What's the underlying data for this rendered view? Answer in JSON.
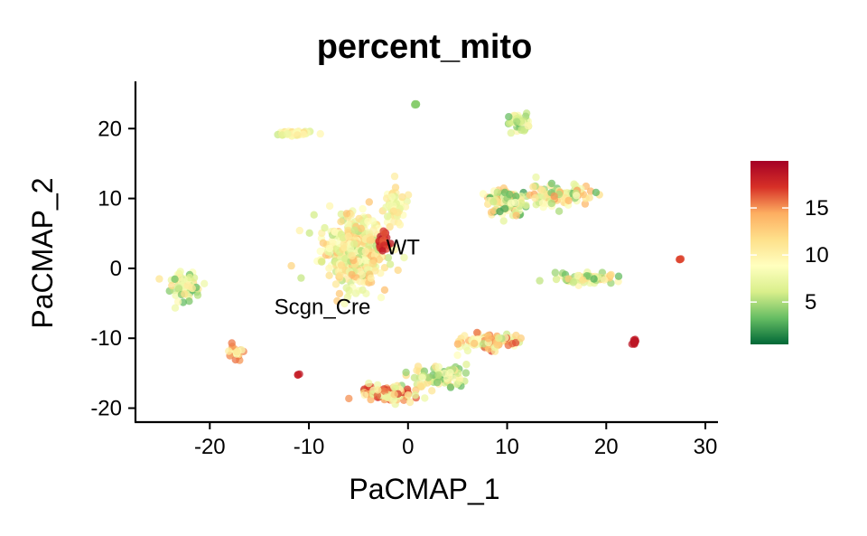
{
  "chart_data": {
    "type": "scatter",
    "title": "percent_mito",
    "xlabel": "PaCMAP_1",
    "ylabel": "PaCMAP_2",
    "xlim": [
      -27.5,
      31
    ],
    "ylim": [
      -22,
      26.5
    ],
    "xticks": [
      -20,
      -10,
      0,
      10,
      20,
      30
    ],
    "yticks": [
      -20,
      -10,
      0,
      10,
      20
    ],
    "grid": false,
    "legend": {
      "position": "right",
      "type": "colorbar",
      "min": 0.5,
      "max": 20,
      "ticks": [
        5,
        10,
        15
      ],
      "colors": [
        "#006837",
        "#66bd63",
        "#d9ef8b",
        "#ffffbf",
        "#fee08b",
        "#fdae61",
        "#d73027",
        "#a50026"
      ]
    },
    "annotations": [
      {
        "text": "WT",
        "x": -2.2,
        "y": 3.0
      },
      {
        "text": "Scgn_Cre",
        "x": -13.5,
        "y": -5.5
      }
    ],
    "clusters": [
      {
        "x": -5.5,
        "y": 2.5,
        "sx": 2.6,
        "sy": 4.2,
        "n": 420,
        "vmin": 5,
        "vmax": 14
      },
      {
        "x": -1.5,
        "y": 9,
        "sx": 1.0,
        "sy": 2.2,
        "n": 60,
        "vmin": 6,
        "vmax": 12
      },
      {
        "x": -11.5,
        "y": 19.3,
        "sx": 1.6,
        "sy": 0.3,
        "n": 50,
        "vmin": 5,
        "vmax": 12
      },
      {
        "x": 0.8,
        "y": 23.5,
        "sx": 0.15,
        "sy": 0.15,
        "n": 6,
        "vmin": 3,
        "vmax": 5
      },
      {
        "x": 11,
        "y": 21.2,
        "sx": 0.9,
        "sy": 0.9,
        "n": 40,
        "vmin": 3,
        "vmax": 10
      },
      {
        "x": 10,
        "y": 9.5,
        "sx": 1.8,
        "sy": 1.6,
        "n": 110,
        "vmin": 2,
        "vmax": 14
      },
      {
        "x": 15.5,
        "y": 10.5,
        "sx": 2.8,
        "sy": 1.2,
        "n": 90,
        "vmin": 3,
        "vmax": 15
      },
      {
        "x": 18,
        "y": -1.5,
        "sx": 2.5,
        "sy": 0.6,
        "n": 70,
        "vmin": 3,
        "vmax": 13
      },
      {
        "x": -22.5,
        "y": -2.5,
        "sx": 1.3,
        "sy": 1.8,
        "n": 70,
        "vmin": 3,
        "vmax": 12
      },
      {
        "x": -17.5,
        "y": -12,
        "sx": 0.8,
        "sy": 0.8,
        "n": 22,
        "vmin": 8,
        "vmax": 16
      },
      {
        "x": 8.5,
        "y": -10.5,
        "sx": 2.2,
        "sy": 0.9,
        "n": 110,
        "vmin": 5,
        "vmax": 17
      },
      {
        "x": 3,
        "y": -15.5,
        "sx": 2.5,
        "sy": 1.5,
        "n": 80,
        "vmin": 3,
        "vmax": 12
      },
      {
        "x": -2,
        "y": -18,
        "sx": 2.2,
        "sy": 0.9,
        "n": 90,
        "vmin": 5,
        "vmax": 18
      },
      {
        "x": 22.8,
        "y": -10.5,
        "sx": 0.15,
        "sy": 0.4,
        "n": 12,
        "vmin": 18,
        "vmax": 19
      },
      {
        "x": 27.4,
        "y": 1.3,
        "sx": 0.1,
        "sy": 0.1,
        "n": 4,
        "vmin": 16,
        "vmax": 17
      },
      {
        "x": -11,
        "y": -15.2,
        "sx": 0.1,
        "sy": 0.1,
        "n": 3,
        "vmin": 18,
        "vmax": 19
      },
      {
        "x": -2.5,
        "y": 3.5,
        "sx": 0.4,
        "sy": 1.5,
        "n": 25,
        "vmin": 16,
        "vmax": 19
      }
    ]
  }
}
